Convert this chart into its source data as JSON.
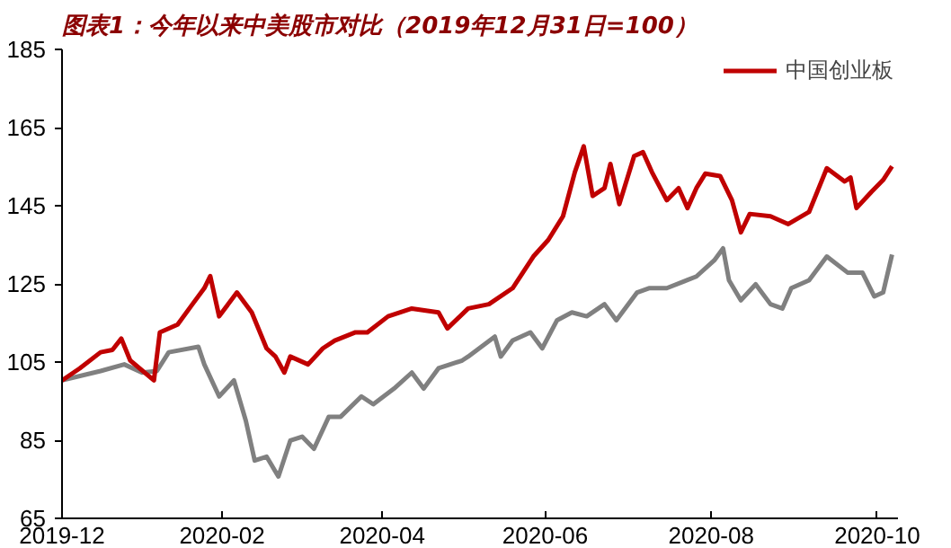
{
  "chart_data": {
    "type": "line",
    "title": "图表1：今年以来中美股市对比（2019年12月31日=100）",
    "series": [
      {
        "color": "#808080",
        "x": [
          "2019-12-31",
          "2020-01-13",
          "2020-01-21",
          "2020-01-27",
          "2020-02-01",
          "2020-02-05",
          "2020-02-15",
          "2020-02-17",
          "2020-02-22",
          "2020-02-27",
          "2020-03-02",
          "2020-03-05",
          "2020-03-09",
          "2020-03-13",
          "2020-03-17",
          "2020-03-21",
          "2020-03-25",
          "2020-03-30",
          "2020-04-03",
          "2020-04-10",
          "2020-04-14",
          "2020-04-21",
          "2020-04-27",
          "2020-05-01",
          "2020-05-06",
          "2020-05-14",
          "2020-05-16",
          "2020-05-25",
          "2020-05-27",
          "2020-05-31",
          "2020-06-06",
          "2020-06-10",
          "2020-06-15",
          "2020-06-20",
          "2020-06-25",
          "2020-07-01",
          "2020-07-05",
          "2020-07-12",
          "2020-07-16",
          "2020-07-22",
          "2020-08-01",
          "2020-08-07",
          "2020-08-10",
          "2020-08-12",
          "2020-08-16",
          "2020-08-21",
          "2020-08-26",
          "2020-08-30",
          "2020-09-02",
          "2020-09-08",
          "2020-09-14",
          "2020-09-21",
          "2020-09-26",
          "2020-09-30",
          "2020-10-03",
          "2020-10-06"
        ],
        "values": [
          100.3,
          102.7,
          104.4,
          102.3,
          102.7,
          107.5,
          108.9,
          104.4,
          96.2,
          100.3,
          90,
          79.8,
          80.8,
          75.7,
          84.9,
          85.9,
          82.8,
          91,
          91,
          96.2,
          94.2,
          98.2,
          102.3,
          98.2,
          103.4,
          105.4,
          106.4,
          111.5,
          106.4,
          110.5,
          112.6,
          108.5,
          115.7,
          117.7,
          116.7,
          119.8,
          115.7,
          122.8,
          123.9,
          123.9,
          126.9,
          131,
          134.1,
          125.9,
          120.8,
          124.9,
          119.8,
          118.7,
          123.9,
          125.9,
          132,
          127.9,
          127.9,
          121.8,
          122.8,
          132.5
        ]
      },
      {
        "name": "中国创业板",
        "color": "#c00000",
        "x": [
          "2019-12-31",
          "2020-01-06",
          "2020-01-13",
          "2020-01-17",
          "2020-01-20",
          "2020-01-23",
          "2020-01-31",
          "2020-02-02",
          "2020-02-08",
          "2020-02-13",
          "2020-02-17",
          "2020-02-19",
          "2020-02-22",
          "2020-02-28",
          "2020-03-04",
          "2020-03-09",
          "2020-03-12",
          "2020-03-15",
          "2020-03-17",
          "2020-03-23",
          "2020-03-28",
          "2020-04-01",
          "2020-04-08",
          "2020-04-12",
          "2020-04-19",
          "2020-04-27",
          "2020-05-06",
          "2020-05-09",
          "2020-05-16",
          "2020-05-23",
          "2020-05-31",
          "2020-06-07",
          "2020-06-12",
          "2020-06-17",
          "2020-06-21",
          "2020-06-24",
          "2020-06-27",
          "2020-07-01",
          "2020-07-03",
          "2020-07-06",
          "2020-07-11",
          "2020-07-14",
          "2020-07-17",
          "2020-07-22",
          "2020-07-26",
          "2020-07-29",
          "2020-08-01",
          "2020-08-04",
          "2020-08-09",
          "2020-08-13",
          "2020-08-16",
          "2020-08-19",
          "2020-08-26",
          "2020-09-01",
          "2020-09-08",
          "2020-09-14",
          "2020-09-20",
          "2020-09-22",
          "2020-09-24",
          "2020-09-29",
          "2020-10-03",
          "2020-10-06"
        ],
        "values": [
          100.3,
          103.4,
          107.5,
          108.1,
          111,
          105.4,
          100.3,
          112.6,
          114.6,
          119.8,
          123.9,
          127,
          116.7,
          122.8,
          117.7,
          108.5,
          106.4,
          102.3,
          106.4,
          104.4,
          108.5,
          110.5,
          112.6,
          112.6,
          116.7,
          118.7,
          117.7,
          113.6,
          118.7,
          119.8,
          123.9,
          132,
          136.2,
          142.3,
          153.6,
          160.2,
          147.5,
          149.5,
          155.7,
          145.4,
          157.7,
          158.7,
          153.6,
          146.4,
          149.5,
          144.4,
          149.5,
          153.2,
          152.6,
          146.4,
          138.2,
          142.9,
          142.3,
          140.3,
          143.4,
          154.6,
          151.2,
          152.2,
          144.4,
          148.5,
          151.6,
          155.1
        ]
      }
    ],
    "xlim": [
      "2019-12-31",
      "2020-10-08"
    ],
    "xticks": [
      {
        "value": "2019-12-31",
        "label": "2019-12"
      },
      {
        "value": "2020-02-23",
        "label": "2020-02"
      },
      {
        "value": "2020-04-17",
        "label": "2020-04"
      },
      {
        "value": "2020-06-11",
        "label": "2020-06"
      },
      {
        "value": "2020-08-06",
        "label": "2020-08"
      },
      {
        "value": "2020-10-01",
        "label": "2020-10"
      }
    ],
    "ylim": [
      65,
      185
    ],
    "yticks": [
      65,
      85,
      105,
      125,
      145,
      165,
      185
    ],
    "legend": "top",
    "grid": false,
    "marker": "none",
    "line_style": "solid"
  }
}
